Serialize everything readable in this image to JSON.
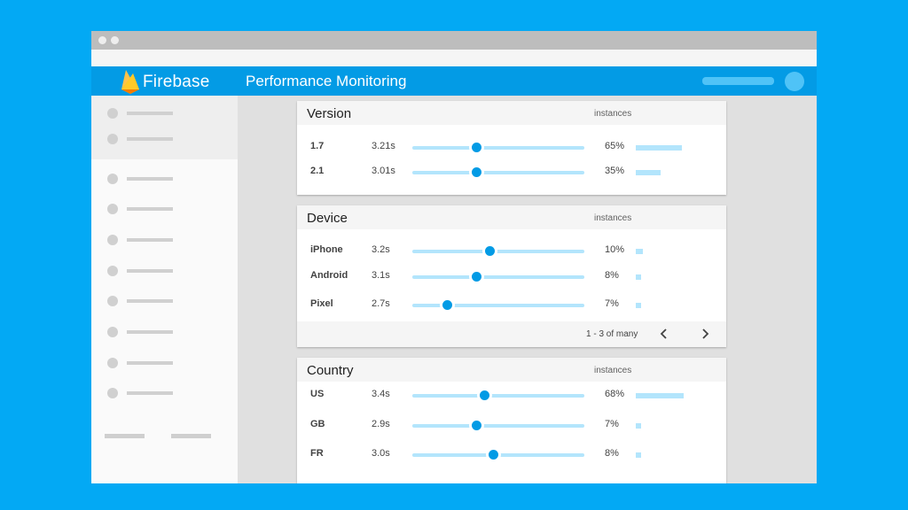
{
  "app": {
    "brand": "Firebase",
    "title": "Performance Monitoring"
  },
  "colors": {
    "background": "#03a9f4",
    "appbar": "#039be5",
    "accent": "#039be5",
    "track": "#b3e5fc"
  },
  "cards": {
    "version": {
      "title": "Version",
      "instances_label": "instances",
      "rows": [
        {
          "label": "1.7",
          "value": "3.21s",
          "slider": 0.37,
          "pct": "65%",
          "instances": 0.65
        },
        {
          "label": "2.1",
          "value": "3.01s",
          "slider": 0.37,
          "pct": "35%",
          "instances": 0.35
        }
      ]
    },
    "device": {
      "title": "Device",
      "instances_label": "instances",
      "rows": [
        {
          "label": "iPhone",
          "value": "3.2s",
          "slider": 0.45,
          "pct": "10%",
          "instances": 0.1
        },
        {
          "label": "Android",
          "value": "3.1s",
          "slider": 0.37,
          "pct": "8%",
          "instances": 0.08
        },
        {
          "label": "Pixel",
          "value": "2.7s",
          "slider": 0.2,
          "pct": "7%",
          "instances": 0.07
        }
      ],
      "pager": {
        "text": "1 - 3 of many",
        "prev_icon": "chevron-left-icon",
        "next_icon": "chevron-right-icon"
      }
    },
    "country": {
      "title": "Country",
      "instances_label": "instances",
      "rows": [
        {
          "label": "US",
          "value": "3.4s",
          "slider": 0.42,
          "pct": "68%",
          "instances": 0.68
        },
        {
          "label": "GB",
          "value": "2.9s",
          "slider": 0.37,
          "pct": "7%",
          "instances": 0.07
        },
        {
          "label": "FR",
          "value": "3.0s",
          "slider": 0.47,
          "pct": "8%",
          "instances": 0.08
        }
      ]
    }
  }
}
